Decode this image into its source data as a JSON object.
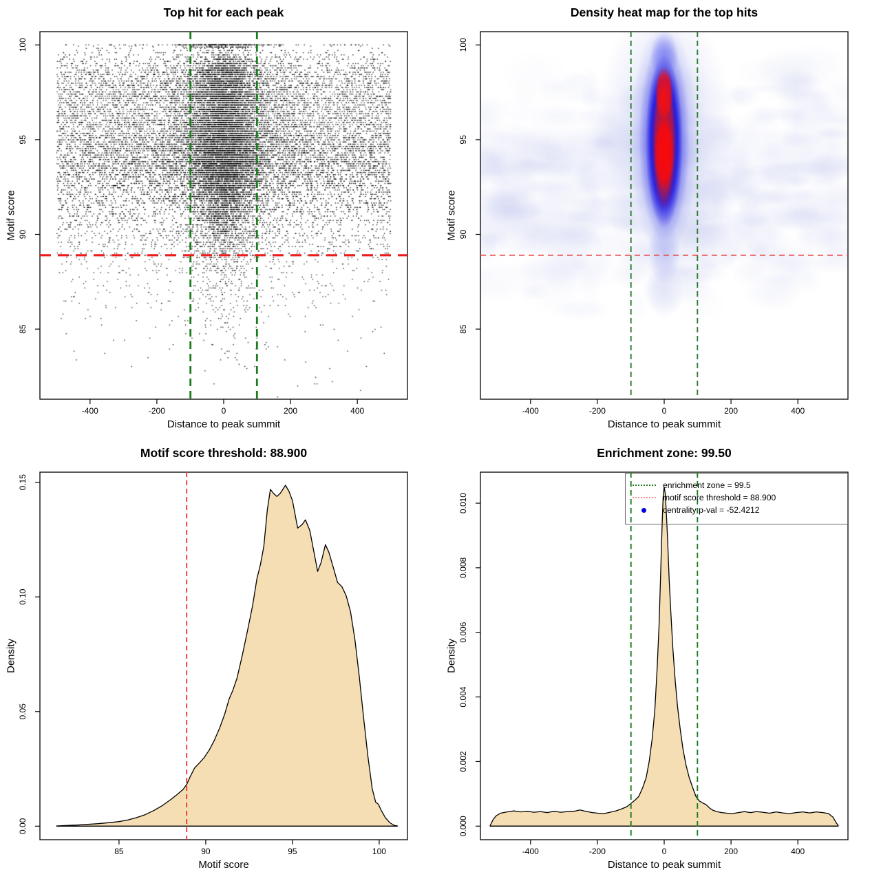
{
  "background": "#ffffff",
  "chart_data": [
    {
      "type": "scatter",
      "title": "Top hit for each peak",
      "xlabel": "Distance to peak summit",
      "ylabel": "Motif score",
      "xlim": [
        -550,
        550
      ],
      "ylim": [
        81.3,
        100.7
      ],
      "xticks": [
        {
          "v": -400,
          "label": "-400"
        },
        {
          "v": -200,
          "label": "-200"
        },
        {
          "v": 0,
          "label": "0"
        },
        {
          "v": 200,
          "label": "200"
        },
        {
          "v": 400,
          "label": "400"
        }
      ],
      "yticks": [
        {
          "v": 85,
          "label": "85"
        },
        {
          "v": 90,
          "label": "90"
        },
        {
          "v": 95,
          "label": "95"
        },
        {
          "v": 100,
          "label": "100"
        }
      ],
      "grid": false,
      "point_color": "#000000",
      "lines": [
        {
          "orient": "v",
          "value": -99.5,
          "color": "#1c7c1c",
          "width": 2.8,
          "dash": "11 7"
        },
        {
          "orient": "v",
          "value": 99.5,
          "color": "#1c7c1c",
          "width": 2.8,
          "dash": "11 7"
        },
        {
          "orient": "h",
          "value": 88.9,
          "color": "#ec1c1c",
          "width": 3.2,
          "dash": "16 10"
        }
      ],
      "scatter": {
        "n_background": 11600,
        "n_center": 10400,
        "x_range": [
          -500,
          500
        ],
        "center_sd_narrow": 50,
        "center_sd_wide": 130,
        "narrow_fraction": 0.72,
        "score_quantum": 0.115,
        "score_min": 81.4,
        "score_max": 100,
        "top_band_extra": 260,
        "point_size": 1.35,
        "point_alpha": 0.92,
        "seed": 42
      }
    },
    {
      "type": "heatmap",
      "title": "Density heat map for the top hits",
      "xlabel": "Distance to peak summit",
      "ylabel": "Motif score",
      "xlim": [
        -550,
        550
      ],
      "ylim": [
        81.3,
        100.7
      ],
      "xticks": [
        {
          "v": -400,
          "label": "-400"
        },
        {
          "v": -200,
          "label": "-200"
        },
        {
          "v": 0,
          "label": "0"
        },
        {
          "v": 200,
          "label": "200"
        },
        {
          "v": 400,
          "label": "400"
        }
      ],
      "yticks": [
        {
          "v": 85,
          "label": "85"
        },
        {
          "v": 90,
          "label": "90"
        },
        {
          "v": 95,
          "label": "95"
        },
        {
          "v": 100,
          "label": "100"
        }
      ],
      "grid": false,
      "lines": [
        {
          "orient": "v",
          "value": -99.5,
          "color": "#2d7d2d",
          "width": 1.9,
          "dash": "8 5"
        },
        {
          "orient": "v",
          "value": 99.5,
          "color": "#2d7d2d",
          "width": 1.9,
          "dash": "8 5"
        },
        {
          "orient": "h",
          "value": 88.9,
          "color": "#e84545",
          "width": 1.6,
          "dash": "8 6"
        }
      ],
      "heatmap": {
        "center_x": 0,
        "hot_lobes": [
          {
            "score": 97.8
          },
          {
            "score": 94.6
          }
        ],
        "strong_score_range": [
          92,
          99.4
        ],
        "field_color": "#b4bce8",
        "shell_color": "#2d2de8",
        "core_color": "#ff0808",
        "n_field_blobs": 380,
        "seed": 7
      }
    },
    {
      "type": "area",
      "title": "Motif score threshold: 88.900",
      "xlabel": "Motif score",
      "ylabel": "Density",
      "xlim": [
        80.44,
        101.63
      ],
      "ylim": [
        -0.0059,
        0.1544
      ],
      "xticks": [
        {
          "v": 85,
          "label": "85"
        },
        {
          "v": 90,
          "label": "90"
        },
        {
          "v": 95,
          "label": "95"
        },
        {
          "v": 100,
          "label": "100"
        }
      ],
      "yticks": [
        {
          "v": 0,
          "label": "0.00"
        },
        {
          "v": 0.05,
          "label": "0.05"
        },
        {
          "v": 0.1,
          "label": "0.10"
        },
        {
          "v": 0.15,
          "label": "0.15"
        }
      ],
      "grid": false,
      "fill": "#f5deb3",
      "stroke": "#000000",
      "lines": [
        {
          "orient": "v",
          "value": 88.9,
          "color": "#f03030",
          "width": 1.8,
          "dash": "7 5"
        }
      ],
      "curve": [
        [
          81.4,
          0.0001
        ],
        [
          82.0,
          0.0003
        ],
        [
          82.6,
          0.0005
        ],
        [
          83.2,
          0.0008
        ],
        [
          83.8,
          0.0011
        ],
        [
          84.4,
          0.0015
        ],
        [
          85.0,
          0.002
        ],
        [
          85.5,
          0.0027
        ],
        [
          86.0,
          0.0037
        ],
        [
          86.5,
          0.005
        ],
        [
          87.0,
          0.0068
        ],
        [
          87.5,
          0.009
        ],
        [
          88.0,
          0.0117
        ],
        [
          88.4,
          0.0141
        ],
        [
          88.7,
          0.0161
        ],
        [
          88.9,
          0.0182
        ],
        [
          89.1,
          0.0215
        ],
        [
          89.35,
          0.0253
        ],
        [
          89.6,
          0.0273
        ],
        [
          89.9,
          0.0298
        ],
        [
          90.2,
          0.0332
        ],
        [
          90.5,
          0.0375
        ],
        [
          90.8,
          0.0428
        ],
        [
          91.1,
          0.049
        ],
        [
          91.35,
          0.0555
        ],
        [
          91.55,
          0.059
        ],
        [
          91.8,
          0.0645
        ],
        [
          92.1,
          0.0742
        ],
        [
          92.4,
          0.085
        ],
        [
          92.7,
          0.0962
        ],
        [
          92.95,
          0.108
        ],
        [
          93.15,
          0.114
        ],
        [
          93.35,
          0.122
        ],
        [
          93.55,
          0.138
        ],
        [
          93.73,
          0.1469
        ],
        [
          93.9,
          0.1452
        ],
        [
          94.1,
          0.1438
        ],
        [
          94.3,
          0.1452
        ],
        [
          94.6,
          0.1487
        ],
        [
          94.8,
          0.146
        ],
        [
          95.0,
          0.142
        ],
        [
          95.3,
          0.13
        ],
        [
          95.55,
          0.1315
        ],
        [
          95.75,
          0.1336
        ],
        [
          96.0,
          0.129
        ],
        [
          96.2,
          0.121
        ],
        [
          96.45,
          0.1111
        ],
        [
          96.65,
          0.115
        ],
        [
          96.9,
          0.1228
        ],
        [
          97.1,
          0.1195
        ],
        [
          97.35,
          0.113
        ],
        [
          97.6,
          0.1063
        ],
        [
          97.85,
          0.1045
        ],
        [
          98.1,
          0.1005
        ],
        [
          98.35,
          0.0935
        ],
        [
          98.6,
          0.0815
        ],
        [
          98.85,
          0.0655
        ],
        [
          99.1,
          0.0475
        ],
        [
          99.35,
          0.0305
        ],
        [
          99.6,
          0.0163
        ],
        [
          99.8,
          0.0104
        ],
        [
          99.95,
          0.0096
        ],
        [
          100.1,
          0.0072
        ],
        [
          100.35,
          0.0038
        ],
        [
          100.6,
          0.0016
        ],
        [
          100.85,
          0.0004
        ],
        [
          101.05,
          0.0001
        ]
      ]
    },
    {
      "type": "area",
      "title": "Enrichment zone: 99.50",
      "xlabel": "Distance to peak summit",
      "ylabel": "Density",
      "xlim": [
        -550,
        550
      ],
      "ylim": [
        -0.00042,
        0.01096
      ],
      "xticks": [
        {
          "v": -400,
          "label": "-400"
        },
        {
          "v": -200,
          "label": "-200"
        },
        {
          "v": 0,
          "label": "0"
        },
        {
          "v": 200,
          "label": "200"
        },
        {
          "v": 400,
          "label": "400"
        }
      ],
      "yticks": [
        {
          "v": 0,
          "label": "0.000"
        },
        {
          "v": 0.002,
          "label": "0.002"
        },
        {
          "v": 0.004,
          "label": "0.004"
        },
        {
          "v": 0.006,
          "label": "0.006"
        },
        {
          "v": 0.008,
          "label": "0.008"
        },
        {
          "v": 0.01,
          "label": "0.010"
        }
      ],
      "grid": false,
      "fill": "#f5deb3",
      "stroke": "#000000",
      "lines": [
        {
          "orient": "v",
          "value": -99.5,
          "color": "#1c7c1c",
          "width": 1.9,
          "dash": "8 5"
        },
        {
          "orient": "v",
          "value": 99.5,
          "color": "#1c7c1c",
          "width": 1.9,
          "dash": "8 5"
        }
      ],
      "curve": [
        [
          -521,
          2e-05
        ],
        [
          -512,
          0.0002
        ],
        [
          -503,
          0.00032
        ],
        [
          -490,
          0.0004
        ],
        [
          -470,
          0.00044
        ],
        [
          -450,
          0.00047
        ],
        [
          -430,
          0.00044
        ],
        [
          -410,
          0.00046
        ],
        [
          -390,
          0.00043
        ],
        [
          -370,
          0.00045
        ],
        [
          -350,
          0.00042
        ],
        [
          -330,
          0.00046
        ],
        [
          -310,
          0.00043
        ],
        [
          -290,
          0.00045
        ],
        [
          -270,
          0.00046
        ],
        [
          -252,
          0.0005
        ],
        [
          -235,
          0.00046
        ],
        [
          -215,
          0.00042
        ],
        [
          -198,
          0.0004
        ],
        [
          -180,
          0.00039
        ],
        [
          -162,
          0.00043
        ],
        [
          -145,
          0.00047
        ],
        [
          -128,
          0.00053
        ],
        [
          -112,
          0.0006
        ],
        [
          -100,
          0.0007
        ],
        [
          -88,
          0.0008
        ],
        [
          -76,
          0.00092
        ],
        [
          -64,
          0.0012
        ],
        [
          -54,
          0.0015
        ],
        [
          -45,
          0.002
        ],
        [
          -36,
          0.0027
        ],
        [
          -28,
          0.0036
        ],
        [
          -21,
          0.0049
        ],
        [
          -15,
          0.0063
        ],
        [
          -10,
          0.008
        ],
        [
          -6,
          0.0094
        ],
        [
          -3,
          0.0102
        ],
        [
          0,
          0.0105
        ],
        [
          3,
          0.0103
        ],
        [
          6,
          0.0098
        ],
        [
          10,
          0.0089
        ],
        [
          15,
          0.0076
        ],
        [
          20,
          0.0066
        ],
        [
          26,
          0.0055
        ],
        [
          33,
          0.0045
        ],
        [
          40,
          0.0037
        ],
        [
          48,
          0.003
        ],
        [
          56,
          0.0024
        ],
        [
          65,
          0.0019
        ],
        [
          75,
          0.0015
        ],
        [
          85,
          0.0012
        ],
        [
          95,
          0.00092
        ],
        [
          105,
          0.00078
        ],
        [
          115,
          0.00072
        ],
        [
          126,
          0.00066
        ],
        [
          136,
          0.00056
        ],
        [
          146,
          0.00049
        ],
        [
          158,
          0.00045
        ],
        [
          172,
          0.00042
        ],
        [
          188,
          0.0004
        ],
        [
          205,
          0.00039
        ],
        [
          222,
          0.00042
        ],
        [
          240,
          0.00045
        ],
        [
          258,
          0.00042
        ],
        [
          276,
          0.00045
        ],
        [
          295,
          0.00043
        ],
        [
          315,
          0.0004
        ],
        [
          335,
          0.00044
        ],
        [
          355,
          0.00041
        ],
        [
          375,
          0.00039
        ],
        [
          395,
          0.00042
        ],
        [
          415,
          0.00044
        ],
        [
          435,
          0.00041
        ],
        [
          455,
          0.00044
        ],
        [
          475,
          0.00042
        ],
        [
          492,
          0.00039
        ],
        [
          505,
          0.00028
        ],
        [
          515,
          0.0001
        ],
        [
          521,
          2e-05
        ]
      ],
      "legend": {
        "border_color": "#666666",
        "entries": [
          {
            "symbol": "green-dotted-line",
            "color": "#1c7c1c",
            "label": "enrichment zone = 99.5"
          },
          {
            "symbol": "red-dotted-line",
            "color": "#ff8a8a",
            "label": "motif score threshold = 88.900"
          },
          {
            "symbol": "blue-point",
            "color": "#0000dd",
            "label": "centrality p-val = -52.4212"
          }
        ]
      }
    }
  ]
}
